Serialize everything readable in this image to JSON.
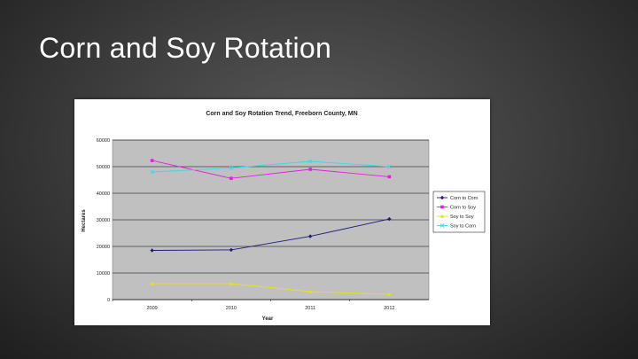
{
  "slide": {
    "title": "Corn and Soy Rotation"
  },
  "colors": {
    "plot_background": "#c0c0c0",
    "gridline": "#000000",
    "corn_to_corn": "#1c1c7a",
    "corn_to_soy": "#e020e0",
    "soy_to_soy": "#e8e020",
    "soy_to_corn": "#3ad8e8"
  },
  "chart_data": {
    "type": "line",
    "title": "Corn and Soy Rotation Trend, Freeborn County, MN",
    "xlabel": "Year",
    "ylabel": "Hectares",
    "categories": [
      "2009",
      "2010",
      "2011",
      "2012"
    ],
    "ylim": [
      0,
      60000
    ],
    "yticks": [
      "0",
      "10000",
      "20000",
      "30000",
      "40000",
      "50000",
      "60000"
    ],
    "grid": true,
    "legend_position": "right",
    "series": [
      {
        "name": "Corn to Corn",
        "values": [
          18500,
          18700,
          23800,
          30300
        ],
        "marker": "diamond"
      },
      {
        "name": "Corn to Soy",
        "values": [
          52300,
          45600,
          49000,
          46200
        ],
        "marker": "square"
      },
      {
        "name": "Soy to Soy",
        "values": [
          6000,
          6000,
          3000,
          2000
        ],
        "marker": "triangle"
      },
      {
        "name": "Soy to Corn",
        "values": [
          48000,
          49500,
          52000,
          50000
        ],
        "marker": "x"
      }
    ]
  }
}
